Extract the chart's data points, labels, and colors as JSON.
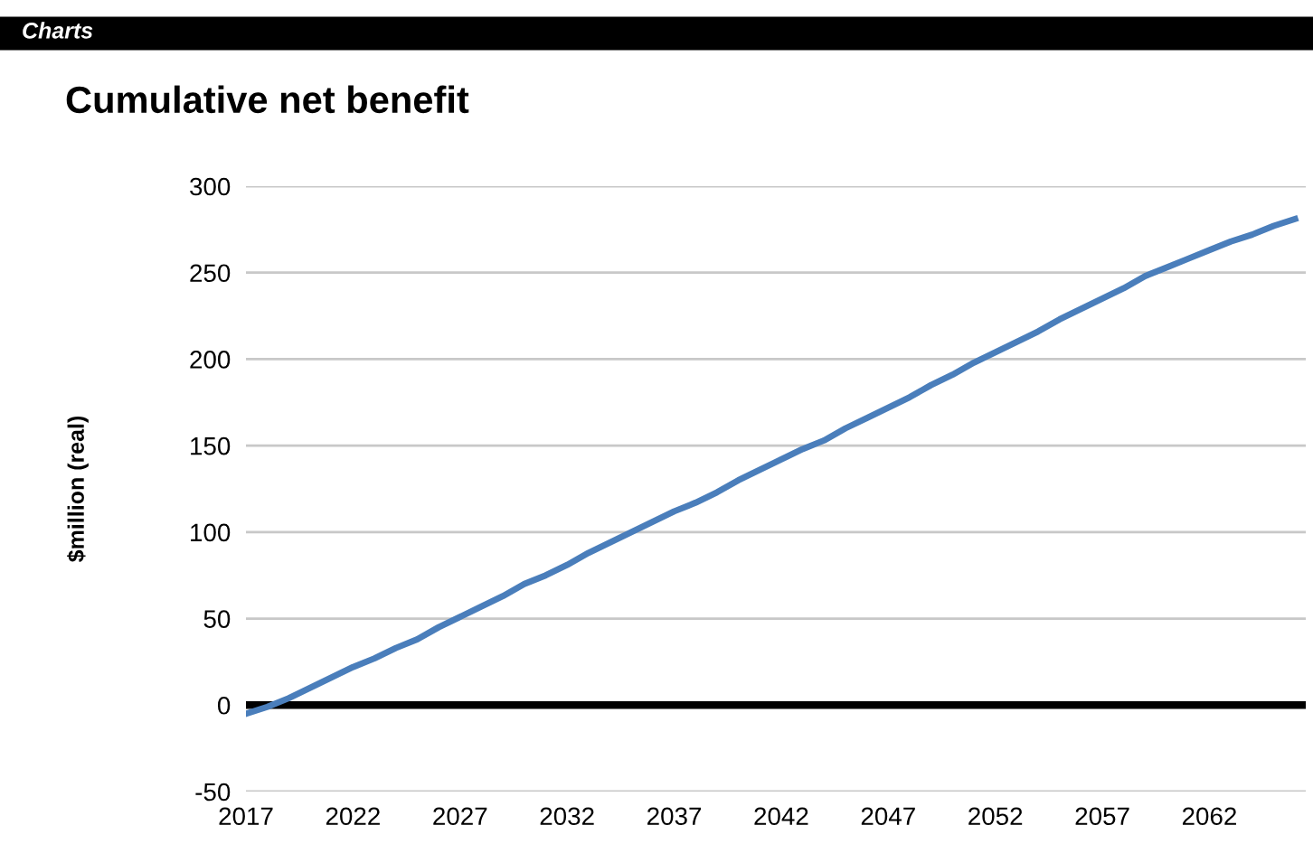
{
  "chart_data": {
    "type": "line",
    "title": "Cumulative net benefit",
    "ylabel": "$million (real)",
    "annotations": [
      "Charts"
    ],
    "x": [
      2017,
      2018,
      2019,
      2020,
      2021,
      2022,
      2023,
      2024,
      2025,
      2026,
      2027,
      2028,
      2029,
      2030,
      2031,
      2032,
      2033,
      2034,
      2035,
      2036,
      2037,
      2038,
      2039,
      2040,
      2041,
      2042,
      2043,
      2044,
      2045,
      2046,
      2047,
      2048,
      2049,
      2050,
      2051,
      2052,
      2053,
      2054,
      2055,
      2056,
      2057,
      2058,
      2059,
      2060,
      2061,
      2062,
      2063,
      2064,
      2065,
      2066
    ],
    "series": [
      {
        "color": "#4a7ebb",
        "values": [
          -5,
          -1,
          4,
          10,
          16,
          22,
          27,
          33,
          38,
          45,
          51,
          57,
          63,
          70,
          75,
          81,
          88,
          94,
          100,
          106,
          112,
          117,
          123,
          130,
          136,
          142,
          148,
          153,
          160,
          166,
          172,
          178,
          185,
          191,
          198,
          204,
          210,
          216,
          223,
          229,
          235,
          241,
          248,
          253,
          258,
          263,
          268,
          272,
          277,
          281
        ]
      }
    ],
    "xlim": [
      2017,
      2066.5
    ],
    "xticks": [
      2017,
      2022,
      2027,
      2032,
      2037,
      2042,
      2047,
      2052,
      2057,
      2062
    ],
    "ylim": [
      -50,
      300
    ],
    "yticks": [
      -50,
      0,
      50,
      100,
      150,
      200,
      250,
      300
    ],
    "ref_lines": [
      {
        "axis": "y",
        "value": 0,
        "color": "#000000"
      }
    ],
    "grid": "y",
    "legend": false,
    "marker": "none",
    "line_style": "solid"
  }
}
